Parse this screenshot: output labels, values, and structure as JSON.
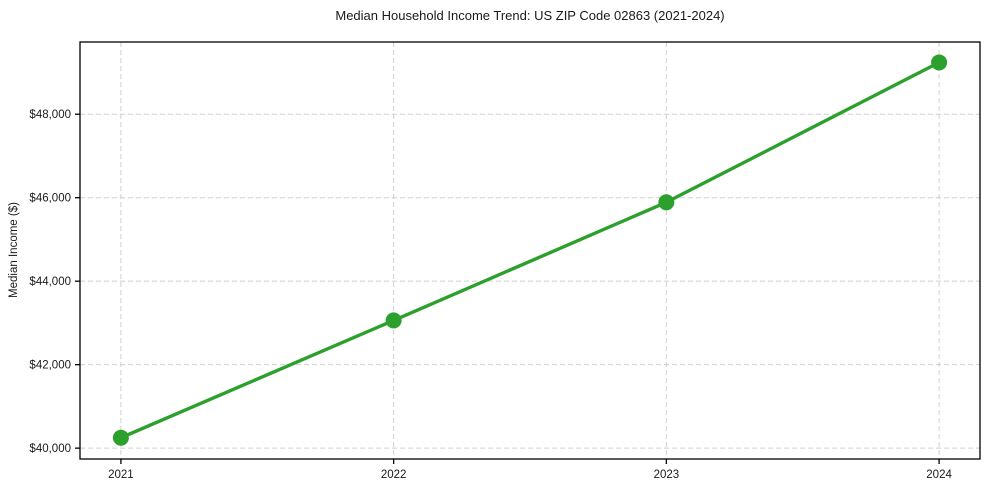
{
  "chart_data": {
    "type": "line",
    "title": "Median Household Income Trend: US ZIP Code 02863 (2021-2024)",
    "xlabel": "",
    "ylabel": "Median Income ($)",
    "x": [
      2021,
      2022,
      2023,
      2024
    ],
    "x_tick_labels": [
      "2021",
      "2022",
      "2023",
      "2024"
    ],
    "values": [
      40250,
      43060,
      45890,
      49240
    ],
    "y_ticks": [
      40000,
      42000,
      44000,
      46000,
      48000
    ],
    "y_tick_labels": [
      "$40,000",
      "$42,000",
      "$44,000",
      "$46,000",
      "$48,000"
    ],
    "xlim": [
      2020.85,
      2024.15
    ],
    "ylim": [
      39740,
      49730
    ],
    "grid": "dashed",
    "legend": "none",
    "marker": "circle",
    "colors": {
      "line": "#2ca02c",
      "marker": "#2ca02c",
      "grid": "#cfcfcf",
      "axis": "#000000",
      "text": "#1a1a1a",
      "background": "#ffffff"
    }
  }
}
